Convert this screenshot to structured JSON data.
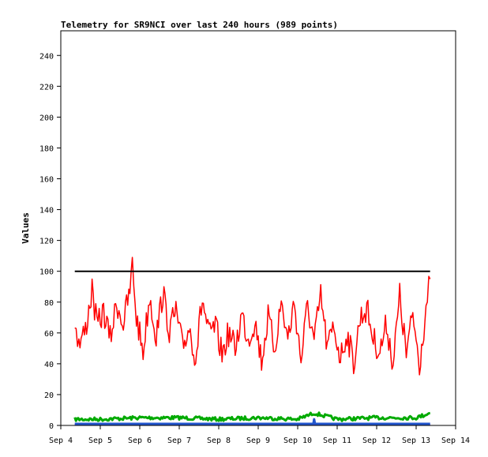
{
  "chart_data": {
    "type": "line",
    "title": "Telemetry for SR9NCI over last 240 hours (989 points)",
    "xlabel": "",
    "ylabel": "Values",
    "x_ticks": [
      "Sep 4",
      "Sep 5",
      "Sep 6",
      "Sep 7",
      "Sep 8",
      "Sep 9",
      "Sep 10",
      "Sep 11",
      "Sep 12",
      "Sep 13",
      "Sep 14"
    ],
    "xlim": [
      "Sep 4 00:00",
      "Sep 14 00:00"
    ],
    "y_ticks": [
      0,
      20,
      40,
      60,
      80,
      100,
      120,
      140,
      160,
      180,
      200,
      220,
      240
    ],
    "ylim": [
      0,
      256
    ],
    "grid": false,
    "legend": "none",
    "series": [
      {
        "color": "#000000",
        "points": [
          [
            "Sep 4 08:30",
            100
          ],
          [
            "Sep 13 08:30",
            100
          ]
        ]
      },
      {
        "color": "#ff0000",
        "points": [
          [
            "Sep 4 08:30",
            70
          ],
          [
            "Sep 4 11:00",
            52
          ],
          [
            "Sep 4 15:00",
            62
          ],
          [
            "Sep 4 19:00",
            88
          ],
          [
            "Sep 4 22:00",
            64
          ],
          [
            "Sep 5 02:00",
            74
          ],
          [
            "Sep 5 06:00",
            56
          ],
          [
            "Sep 5 10:00",
            80
          ],
          [
            "Sep 5 14:00",
            66
          ],
          [
            "Sep 5 18:00",
            87
          ],
          [
            "Sep 5 19:30",
            104
          ],
          [
            "Sep 5 22:00",
            70
          ],
          [
            "Sep 6 02:00",
            48
          ],
          [
            "Sep 6 06:00",
            84
          ],
          [
            "Sep 6 10:00",
            58
          ],
          [
            "Sep 6 14:00",
            86
          ],
          [
            "Sep 6 18:00",
            62
          ],
          [
            "Sep 6 22:00",
            74
          ],
          [
            "Sep 7 02:00",
            50
          ],
          [
            "Sep 7 06:00",
            64
          ],
          [
            "Sep 7 10:00",
            44
          ],
          [
            "Sep 7 14:00",
            82
          ],
          [
            "Sep 7 18:00",
            58
          ],
          [
            "Sep 7 22:00",
            64
          ],
          [
            "Sep 8 02:00",
            46
          ],
          [
            "Sep 8 06:00",
            60
          ],
          [
            "Sep 8 10:00",
            50
          ],
          [
            "Sep 8 14:00",
            72
          ],
          [
            "Sep 8 18:00",
            56
          ],
          [
            "Sep 8 22:00",
            68
          ],
          [
            "Sep 9 02:00",
            42
          ],
          [
            "Sep 9 06:00",
            70
          ],
          [
            "Sep 9 10:00",
            50
          ],
          [
            "Sep 9 14:00",
            80
          ],
          [
            "Sep 9 18:00",
            56
          ],
          [
            "Sep 9 22:00",
            80
          ],
          [
            "Sep 10 02:00",
            42
          ],
          [
            "Sep 10 06:00",
            78
          ],
          [
            "Sep 10 10:00",
            54
          ],
          [
            "Sep 10 14:00",
            84
          ],
          [
            "Sep 10 18:00",
            50
          ],
          [
            "Sep 10 22:00",
            64
          ],
          [
            "Sep 11 02:00",
            44
          ],
          [
            "Sep 11 06:00",
            60
          ],
          [
            "Sep 11 10:00",
            40
          ],
          [
            "Sep 11 14:00",
            70
          ],
          [
            "Sep 11 18:00",
            76
          ],
          [
            "Sep 11 22:00",
            56
          ],
          [
            "Sep 12 02:00",
            48
          ],
          [
            "Sep 12 06:00",
            66
          ],
          [
            "Sep 12 10:00",
            40
          ],
          [
            "Sep 12 14:00",
            84
          ],
          [
            "Sep 12 18:00",
            46
          ],
          [
            "Sep 12 22:00",
            72
          ],
          [
            "Sep 13 02:00",
            40
          ],
          [
            "Sep 13 06:00",
            76
          ],
          [
            "Sep 13 08:30",
            95
          ]
        ]
      },
      {
        "color": "#00aa00",
        "points": [
          [
            "Sep 4 08:30",
            4
          ],
          [
            "Sep 5 00:00",
            4
          ],
          [
            "Sep 6 00:00",
            5
          ],
          [
            "Sep 7 00:00",
            5
          ],
          [
            "Sep 8 00:00",
            4
          ],
          [
            "Sep 9 00:00",
            5
          ],
          [
            "Sep 10 00:00",
            4
          ],
          [
            "Sep 10 10:00",
            8
          ],
          [
            "Sep 11 00:00",
            4
          ],
          [
            "Sep 12 00:00",
            5
          ],
          [
            "Sep 13 00:00",
            5
          ],
          [
            "Sep 13 08:30",
            8
          ]
        ]
      },
      {
        "color": "#2255cc",
        "points": [
          [
            "Sep 4 08:30",
            1
          ],
          [
            "Sep 10 09:30",
            1
          ],
          [
            "Sep 10 10:00",
            4
          ],
          [
            "Sep 10 10:30",
            1
          ],
          [
            "Sep 13 08:30",
            1
          ]
        ]
      },
      {
        "color": "#cc00cc",
        "points": [
          [
            "Sep 4 08:30",
            0.5
          ],
          [
            "Sep 13 08:30",
            0.5
          ]
        ]
      }
    ]
  }
}
